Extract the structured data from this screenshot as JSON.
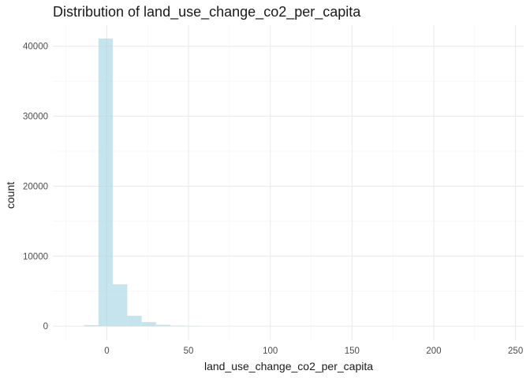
{
  "chart_data": {
    "type": "bar",
    "title": "Distribution of land_use_change_co2_per_capita",
    "xlabel": "land_use_change_co2_per_capita",
    "ylabel": "count",
    "xlim": [
      -33,
      255
    ],
    "ylim": [
      -2000,
      43000
    ],
    "x_ticks": [
      0,
      50,
      100,
      150,
      200,
      250
    ],
    "y_ticks": [
      0,
      10000,
      20000,
      30000,
      40000
    ],
    "bar_color": "#add8e6",
    "bar_opacity": 0.7,
    "grid": true,
    "legend": "none",
    "bin_width": 8.8,
    "bins": [
      {
        "x0": -13.9,
        "x1": -5.1,
        "count": 150
      },
      {
        "x0": -5.1,
        "x1": 3.7,
        "count": 41100
      },
      {
        "x0": 3.7,
        "x1": 12.5,
        "count": 6000
      },
      {
        "x0": 12.5,
        "x1": 21.3,
        "count": 1500
      },
      {
        "x0": 21.3,
        "x1": 30.1,
        "count": 600
      },
      {
        "x0": 30.1,
        "x1": 38.9,
        "count": 200
      },
      {
        "x0": 38.9,
        "x1": 47.7,
        "count": 80
      },
      {
        "x0": 47.7,
        "x1": 56.5,
        "count": 30
      }
    ]
  }
}
